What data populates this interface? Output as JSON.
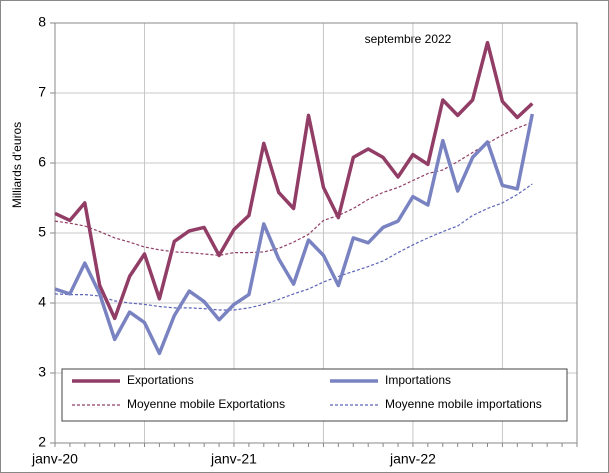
{
  "chart_data": {
    "type": "line",
    "y_label": "Milliards d'euros",
    "annotation": "septembre 2022",
    "categories": [
      "janv-20",
      null,
      null,
      null,
      null,
      null,
      null,
      null,
      null,
      null,
      null,
      null,
      "janv-21",
      null,
      null,
      null,
      null,
      null,
      null,
      null,
      null,
      null,
      null,
      null,
      "janv-22",
      null,
      null,
      null,
      null,
      null,
      null,
      null,
      null,
      null,
      null,
      null
    ],
    "ylim": [
      2,
      8
    ],
    "yticks": [
      2,
      3,
      4,
      5,
      6,
      7,
      8
    ],
    "grid": true,
    "series": [
      {
        "name": "Exportations",
        "color": "#913d66",
        "dashed": false,
        "values": [
          5.28,
          5.18,
          5.43,
          4.25,
          3.78,
          4.38,
          4.7,
          4.06,
          4.88,
          5.03,
          5.08,
          4.68,
          5.05,
          5.25,
          6.28,
          5.58,
          5.35,
          6.68,
          5.65,
          5.22,
          6.08,
          6.2,
          6.08,
          5.8,
          6.12,
          5.98,
          6.9,
          6.68,
          6.9,
          7.72,
          6.88,
          6.65,
          6.85,
          null,
          null,
          null
        ]
      },
      {
        "name": "Importations",
        "color": "#7a83c2",
        "dashed": false,
        "values": [
          4.2,
          4.13,
          4.57,
          4.13,
          3.48,
          3.87,
          3.72,
          3.28,
          3.82,
          4.17,
          4.02,
          3.76,
          3.98,
          4.12,
          5.13,
          4.63,
          4.27,
          4.9,
          4.68,
          4.25,
          4.93,
          4.86,
          5.08,
          5.17,
          5.52,
          5.4,
          6.32,
          5.6,
          6.08,
          6.3,
          5.68,
          5.63,
          6.7,
          null,
          null,
          null
        ]
      },
      {
        "name": "Moyenne mobile Exportations",
        "color": "#913d66",
        "dashed": true,
        "values": [
          5.17,
          5.14,
          5.1,
          5.02,
          4.93,
          4.87,
          4.8,
          4.76,
          4.73,
          4.72,
          4.7,
          4.68,
          4.72,
          4.72,
          4.73,
          4.78,
          4.87,
          4.98,
          5.18,
          5.25,
          5.35,
          5.48,
          5.58,
          5.65,
          5.75,
          5.85,
          5.9,
          6.02,
          6.15,
          6.28,
          6.4,
          6.5,
          6.58,
          null,
          null,
          null
        ]
      },
      {
        "name": "Moyenne mobile importations",
        "color": "#5a64b8",
        "dashed": true,
        "values": [
          4.13,
          4.12,
          4.12,
          4.1,
          4.03,
          4.0,
          3.98,
          3.95,
          3.93,
          3.93,
          3.92,
          3.9,
          3.9,
          3.93,
          3.98,
          4.05,
          4.13,
          4.2,
          4.3,
          4.38,
          4.45,
          4.52,
          4.6,
          4.72,
          4.83,
          4.93,
          5.02,
          5.1,
          5.25,
          5.35,
          5.43,
          5.55,
          5.7,
          null,
          null,
          null
        ]
      }
    ]
  }
}
